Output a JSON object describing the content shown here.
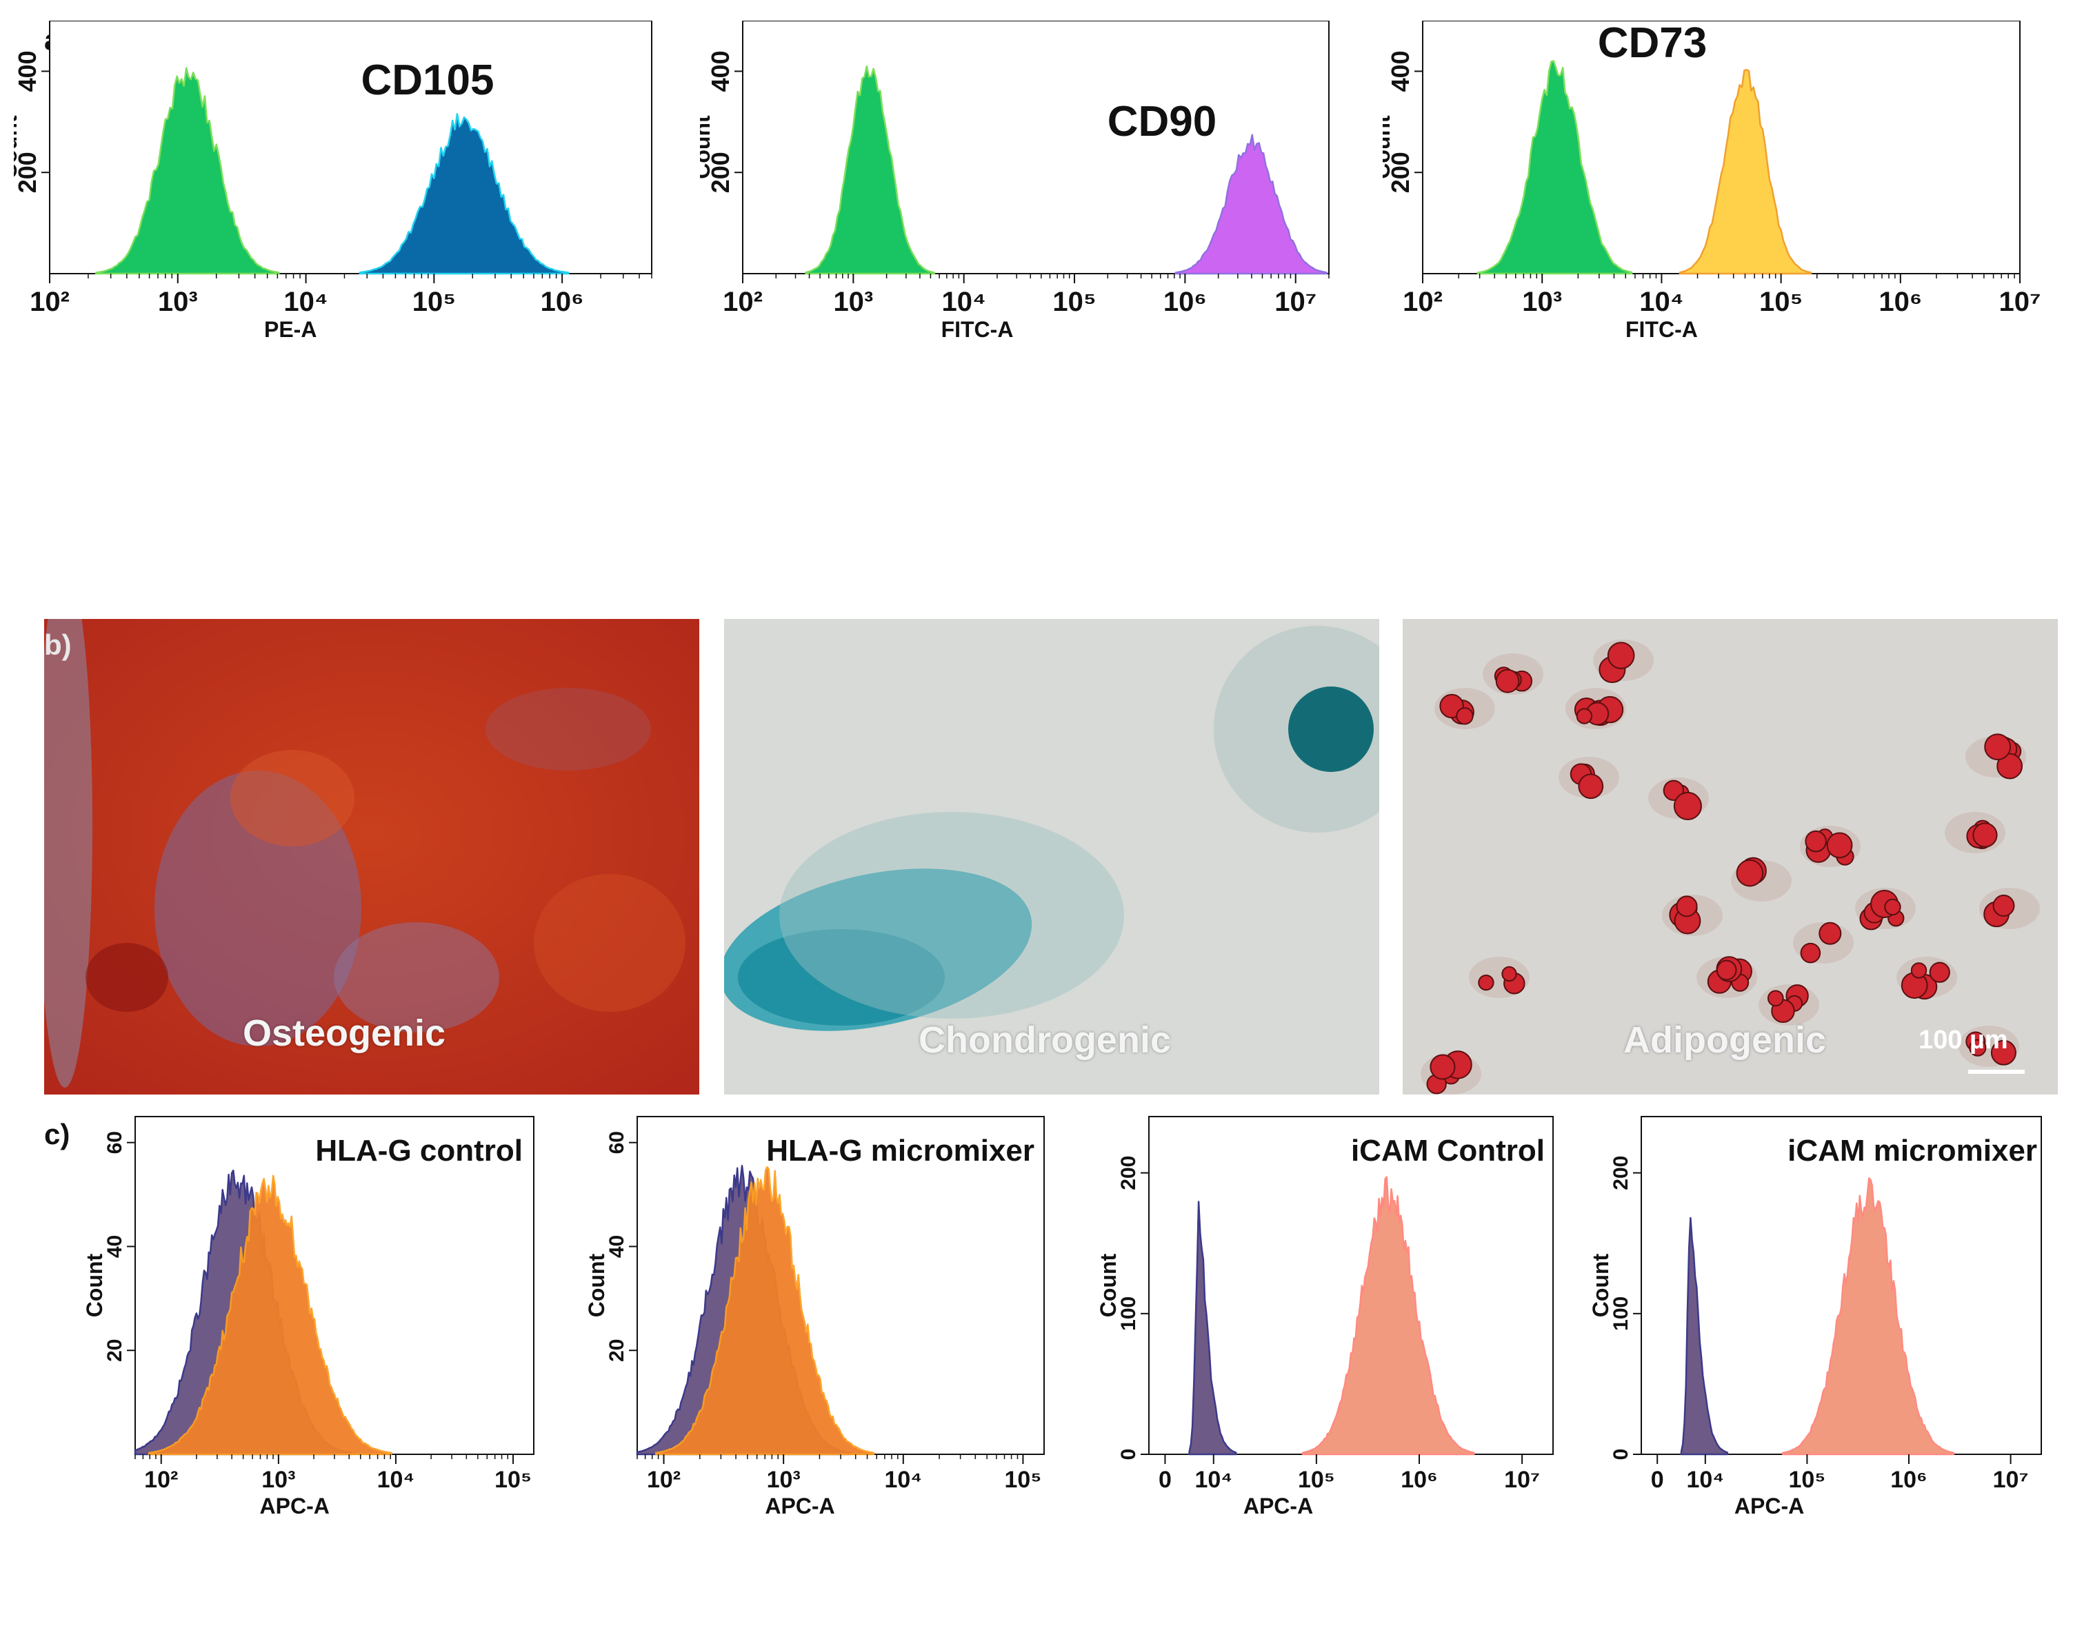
{
  "panel_labels": {
    "a": "a)",
    "b": "b)",
    "c": "c)"
  },
  "colors": {
    "green": "#19c463",
    "green_edge": "#7ddf5a",
    "blue": "#0a6aa8",
    "blue_edge": "#22d3f0",
    "magenta": "#cc66f2",
    "magenta_edge": "#9070e0",
    "yellow": "#ffd14a",
    "yellow_edge": "#f0a030",
    "purple": "#6e5a86",
    "purple_edge": "#3c3a8a",
    "orange": "#f0802a",
    "orange_edge": "#ffa020",
    "salmon": "#f29a80",
    "salmon_edge": "#ff8a80"
  },
  "micrographs": [
    {
      "caption": "Osteogenic",
      "stain_color": "#c63a1c"
    },
    {
      "caption": "Chondrogenic",
      "stain_color": "#1f8e9a"
    },
    {
      "caption": "Adipogenic",
      "stain_color": "#d0242e",
      "scale_bar": "100 µm"
    }
  ],
  "chart_data": [
    {
      "type": "area",
      "title": "CD105",
      "xlabel": "PE-A",
      "ylabel": "Count",
      "xscale": "log",
      "xlim": [
        100,
        5000000
      ],
      "ylim": [
        0,
        500
      ],
      "x_ticks": [
        "10^2",
        "10^3",
        "10^4",
        "10^5",
        "10^6"
      ],
      "y_ticks": [
        200,
        400
      ],
      "legend": "none",
      "series": [
        {
          "peak_x": 1200,
          "peak_y": 410,
          "log_sigma": 0.22,
          "color": "green"
        },
        {
          "peak_x": 170000,
          "peak_y": 310,
          "log_sigma": 0.26,
          "color": "blue"
        }
      ]
    },
    {
      "type": "area",
      "title": "CD90",
      "xlabel": "FITC-A",
      "ylabel": "Count",
      "xscale": "log",
      "xlim": [
        100,
        20000000
      ],
      "ylim": [
        0,
        500
      ],
      "x_ticks": [
        "10^2",
        "10^3",
        "10^4",
        "10^5",
        "10^6",
        "10^7"
      ],
      "y_ticks": [
        200,
        400
      ],
      "legend": "none",
      "series": [
        {
          "peak_x": 1400,
          "peak_y": 415,
          "log_sigma": 0.18,
          "color": "green"
        },
        {
          "peak_x": 4000000,
          "peak_y": 265,
          "log_sigma": 0.22,
          "color": "magenta"
        }
      ]
    },
    {
      "type": "area",
      "title": "CD73",
      "xlabel": "FITC-A",
      "ylabel": "Count",
      "xscale": "log",
      "xlim": [
        100,
        10000000
      ],
      "ylim": [
        0,
        500
      ],
      "x_ticks": [
        "10^2",
        "10^3",
        "10^4",
        "10^5",
        "10^6",
        "10^7"
      ],
      "y_ticks": [
        200,
        400
      ],
      "legend": "none",
      "series": [
        {
          "peak_x": 1300,
          "peak_y": 410,
          "log_sigma": 0.2,
          "color": "green"
        },
        {
          "peak_x": 50000,
          "peak_y": 410,
          "log_sigma": 0.17,
          "color": "yellow"
        }
      ]
    },
    {
      "type": "area",
      "title": "HLA-G control",
      "xlabel": "APC-A",
      "ylabel": "Count",
      "xscale": "log",
      "xlim": [
        60,
        150000
      ],
      "ylim": [
        0,
        65
      ],
      "x_ticks": [
        "10^2",
        "10^3",
        "10^4",
        "10^5"
      ],
      "y_ticks": [
        20,
        40,
        60
      ],
      "legend": "none",
      "series": [
        {
          "peak_x": 450,
          "peak_y": 54,
          "log_sigma": 0.3,
          "color": "purple"
        },
        {
          "peak_x": 850,
          "peak_y": 52,
          "log_sigma": 0.32,
          "color": "orange"
        }
      ]
    },
    {
      "type": "area",
      "title": "HLA-G micromixer",
      "xlabel": "APC-A",
      "ylabel": "Count",
      "xscale": "log",
      "xlim": [
        60,
        150000
      ],
      "ylim": [
        0,
        65
      ],
      "x_ticks": [
        "10^2",
        "10^3",
        "10^4",
        "10^5"
      ],
      "y_ticks": [
        20,
        40,
        60
      ],
      "legend": "none",
      "series": [
        {
          "peak_x": 450,
          "peak_y": 54,
          "log_sigma": 0.28,
          "color": "purple"
        },
        {
          "peak_x": 700,
          "peak_y": 55,
          "log_sigma": 0.28,
          "color": "orange"
        }
      ]
    },
    {
      "type": "area",
      "title": "iCAM Control",
      "xlabel": "APC-A",
      "ylabel": "Count",
      "xscale": "biexponential",
      "xlim": [
        0,
        20000000
      ],
      "ylim": [
        0,
        240
      ],
      "x_ticks": [
        "0",
        "10^4",
        "10^5",
        "10^6",
        "10^7"
      ],
      "y_ticks": [
        0,
        100,
        200
      ],
      "legend": "none",
      "series": [
        {
          "peak_x": 2500,
          "peak_y": 175,
          "color": "purple"
        },
        {
          "peak_x": 500000,
          "peak_y": 190,
          "log_sigma": 0.26,
          "color": "salmon"
        }
      ]
    },
    {
      "type": "area",
      "title": "iCAM micromixer",
      "xlabel": "APC-A",
      "ylabel": "Count",
      "xscale": "biexponential",
      "xlim": [
        0,
        20000000
      ],
      "ylim": [
        0,
        240
      ],
      "x_ticks": [
        "0",
        "10^4",
        "10^5",
        "10^6",
        "10^7"
      ],
      "y_ticks": [
        0,
        100,
        200
      ],
      "legend": "none",
      "series": [
        {
          "peak_x": 2500,
          "peak_y": 175,
          "color": "purple"
        },
        {
          "peak_x": 400000,
          "peak_y": 190,
          "log_sigma": 0.26,
          "color": "salmon"
        }
      ]
    }
  ]
}
